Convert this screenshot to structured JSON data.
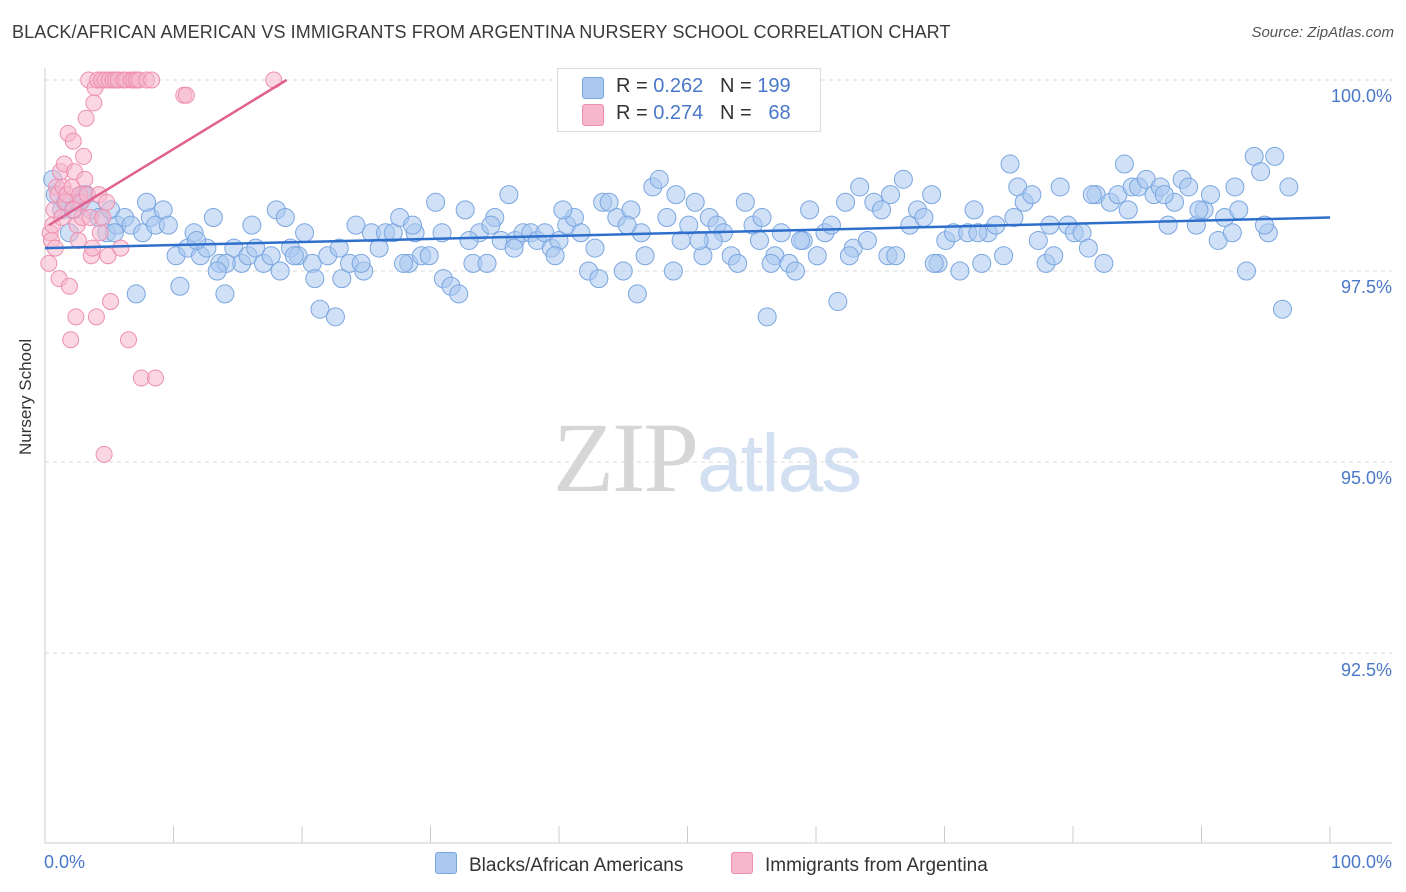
{
  "title": "BLACK/AFRICAN AMERICAN VS IMMIGRANTS FROM ARGENTINA NURSERY SCHOOL CORRELATION CHART",
  "source": "Source: ZipAtlas.com",
  "watermark": {
    "part1": "ZIP",
    "part2": "atlas"
  },
  "legend": {
    "r_label": "R =",
    "n_label": "N =",
    "rows": [
      {
        "r": "0.262",
        "n": "199"
      },
      {
        "r": "0.274",
        "n": "68"
      }
    ]
  },
  "bottom_legend": [
    "Blacks/African Americans",
    "Immigrants from Argentina"
  ],
  "colors": {
    "blue_fill": "#aac8f0",
    "blue_stroke": "#7aa6e0",
    "blue_line": "#2f6fcc",
    "pink_fill": "#f6b6cc",
    "pink_stroke": "#ee8fb0",
    "pink_line": "#e0608f",
    "tick_text": "#4a78c8",
    "grid": "#d9d9d9"
  },
  "chart_data": {
    "type": "scatter",
    "title": "BLACK/AFRICAN AMERICAN VS IMMIGRANTS FROM ARGENTINA NURSERY SCHOOL CORRELATION CHART",
    "xlabel": "",
    "ylabel": "Nursery School",
    "xlim": [
      0,
      100
    ],
    "ylim": [
      90.0,
      100.2
    ],
    "x_tick_labels": [
      "0.0%",
      "100.0%"
    ],
    "y_ticks": [
      92.5,
      95.0,
      97.5,
      100.0
    ],
    "y_tick_labels": [
      "92.5%",
      "95.0%",
      "97.5%",
      "100.0%"
    ],
    "grid": "horizontal dashed",
    "series": [
      {
        "name": "Blacks/African Americans",
        "R": 0.262,
        "N": 199,
        "trend": {
          "x": [
            0,
            100
          ],
          "y": [
            97.8,
            98.2
          ]
        },
        "points": [
          [
            0.6,
            98.7
          ],
          [
            0.8,
            98.5
          ],
          [
            1.3,
            98.3
          ],
          [
            1.6,
            98.4
          ],
          [
            2.2,
            98.3
          ],
          [
            2.6,
            98.4
          ],
          [
            3.2,
            98.5
          ],
          [
            3.6,
            98.3
          ],
          [
            4.2,
            98.2
          ],
          [
            4.8,
            98.0
          ],
          [
            5.1,
            98.3
          ],
          [
            5.6,
            98.1
          ],
          [
            6.2,
            98.2
          ],
          [
            6.7,
            98.1
          ],
          [
            7.1,
            97.2
          ],
          [
            7.6,
            98.0
          ],
          [
            8.2,
            98.2
          ],
          [
            8.6,
            98.1
          ],
          [
            9.2,
            98.3
          ],
          [
            9.6,
            98.1
          ],
          [
            10.2,
            97.7
          ],
          [
            10.5,
            97.3
          ],
          [
            11.1,
            97.8
          ],
          [
            11.6,
            98.0
          ],
          [
            12.1,
            97.7
          ],
          [
            12.6,
            97.8
          ],
          [
            13.1,
            98.2
          ],
          [
            13.6,
            97.6
          ],
          [
            14.0,
            97.2
          ],
          [
            14.7,
            97.8
          ],
          [
            15.3,
            97.6
          ],
          [
            15.8,
            97.7
          ],
          [
            16.4,
            97.8
          ],
          [
            17.0,
            97.6
          ],
          [
            17.6,
            97.7
          ],
          [
            18.0,
            98.3
          ],
          [
            18.7,
            98.2
          ],
          [
            19.1,
            97.8
          ],
          [
            19.7,
            97.7
          ],
          [
            20.2,
            98.0
          ],
          [
            20.8,
            97.6
          ],
          [
            21.4,
            97.0
          ],
          [
            22.0,
            97.7
          ],
          [
            22.6,
            96.9
          ],
          [
            23.1,
            97.4
          ],
          [
            23.7,
            97.6
          ],
          [
            24.2,
            98.1
          ],
          [
            24.8,
            97.5
          ],
          [
            25.4,
            98.0
          ],
          [
            26.0,
            97.8
          ],
          [
            26.5,
            98.0
          ],
          [
            27.1,
            98.0
          ],
          [
            27.6,
            98.2
          ],
          [
            28.3,
            97.6
          ],
          [
            28.8,
            98.0
          ],
          [
            29.3,
            97.7
          ],
          [
            29.9,
            97.7
          ],
          [
            30.4,
            98.4
          ],
          [
            31.0,
            97.4
          ],
          [
            31.6,
            97.3
          ],
          [
            32.2,
            97.2
          ],
          [
            32.7,
            98.3
          ],
          [
            33.3,
            97.6
          ],
          [
            33.8,
            98.0
          ],
          [
            34.4,
            97.6
          ],
          [
            35.0,
            98.2
          ],
          [
            35.5,
            97.9
          ],
          [
            36.1,
            98.5
          ],
          [
            36.6,
            97.9
          ],
          [
            37.2,
            98.0
          ],
          [
            37.8,
            98.0
          ],
          [
            38.3,
            97.9
          ],
          [
            38.9,
            98.0
          ],
          [
            39.4,
            97.8
          ],
          [
            40.0,
            97.9
          ],
          [
            40.6,
            98.1
          ],
          [
            41.2,
            98.2
          ],
          [
            41.7,
            98.0
          ],
          [
            42.3,
            97.5
          ],
          [
            42.8,
            97.8
          ],
          [
            43.4,
            98.4
          ],
          [
            43.9,
            98.4
          ],
          [
            44.5,
            98.2
          ],
          [
            45.0,
            97.5
          ],
          [
            45.6,
            98.3
          ],
          [
            46.1,
            97.2
          ],
          [
            46.7,
            97.7
          ],
          [
            47.3,
            98.6
          ],
          [
            47.8,
            98.7
          ],
          [
            48.4,
            98.2
          ],
          [
            48.9,
            97.5
          ],
          [
            49.5,
            97.9
          ],
          [
            50.1,
            98.1
          ],
          [
            50.6,
            98.4
          ],
          [
            51.2,
            97.7
          ],
          [
            51.7,
            98.2
          ],
          [
            52.3,
            98.1
          ],
          [
            52.8,
            98.0
          ],
          [
            53.4,
            97.7
          ],
          [
            53.9,
            97.6
          ],
          [
            54.5,
            98.4
          ],
          [
            55.1,
            98.1
          ],
          [
            55.6,
            97.9
          ],
          [
            56.2,
            96.9
          ],
          [
            56.8,
            97.7
          ],
          [
            57.3,
            98.0
          ],
          [
            57.9,
            97.6
          ],
          [
            58.4,
            97.5
          ],
          [
            59.0,
            97.9
          ],
          [
            59.5,
            98.3
          ],
          [
            60.1,
            97.7
          ],
          [
            60.7,
            98.0
          ],
          [
            61.2,
            98.1
          ],
          [
            61.7,
            97.1
          ],
          [
            62.3,
            98.4
          ],
          [
            62.9,
            97.8
          ],
          [
            63.4,
            98.6
          ],
          [
            64.0,
            97.9
          ],
          [
            64.5,
            98.4
          ],
          [
            65.1,
            98.3
          ],
          [
            65.6,
            97.7
          ],
          [
            66.2,
            97.7
          ],
          [
            66.8,
            98.7
          ],
          [
            67.3,
            98.1
          ],
          [
            67.9,
            98.3
          ],
          [
            68.4,
            98.2
          ],
          [
            69.0,
            98.5
          ],
          [
            69.5,
            97.6
          ],
          [
            70.1,
            97.9
          ],
          [
            70.7,
            98.0
          ],
          [
            71.2,
            97.5
          ],
          [
            71.8,
            98.0
          ],
          [
            72.3,
            98.3
          ],
          [
            72.9,
            97.6
          ],
          [
            73.4,
            98.0
          ],
          [
            74.0,
            98.1
          ],
          [
            74.6,
            97.7
          ],
          [
            75.1,
            98.9
          ],
          [
            75.7,
            98.6
          ],
          [
            76.2,
            98.4
          ],
          [
            76.8,
            98.5
          ],
          [
            77.3,
            97.9
          ],
          [
            77.9,
            97.6
          ],
          [
            78.5,
            97.7
          ],
          [
            79.0,
            98.6
          ],
          [
            79.6,
            98.1
          ],
          [
            80.1,
            98.0
          ],
          [
            80.7,
            98.0
          ],
          [
            81.2,
            97.8
          ],
          [
            81.8,
            98.5
          ],
          [
            82.4,
            97.6
          ],
          [
            82.9,
            98.4
          ],
          [
            83.5,
            98.5
          ],
          [
            84.0,
            98.9
          ],
          [
            84.6,
            98.6
          ],
          [
            85.1,
            98.6
          ],
          [
            85.7,
            98.7
          ],
          [
            86.3,
            98.5
          ],
          [
            86.8,
            98.6
          ],
          [
            87.4,
            98.1
          ],
          [
            87.9,
            98.4
          ],
          [
            88.5,
            98.7
          ],
          [
            89.0,
            98.6
          ],
          [
            89.6,
            98.1
          ],
          [
            90.2,
            98.3
          ],
          [
            90.7,
            98.5
          ],
          [
            91.3,
            97.9
          ],
          [
            91.8,
            98.2
          ],
          [
            92.4,
            98.0
          ],
          [
            92.9,
            98.3
          ],
          [
            93.5,
            97.5
          ],
          [
            94.1,
            99.0
          ],
          [
            94.6,
            98.8
          ],
          [
            95.2,
            98.0
          ],
          [
            95.7,
            99.0
          ],
          [
            96.3,
            97.0
          ],
          [
            96.8,
            98.6
          ],
          [
            3.0,
            98.5
          ],
          [
            5.4,
            98.0
          ],
          [
            11.8,
            97.9
          ],
          [
            14.1,
            97.6
          ],
          [
            16.1,
            98.1
          ],
          [
            19.4,
            97.7
          ],
          [
            21.0,
            97.4
          ],
          [
            24.6,
            97.6
          ],
          [
            27.9,
            97.6
          ],
          [
            30.9,
            98.0
          ],
          [
            33.0,
            97.9
          ],
          [
            36.5,
            97.8
          ],
          [
            39.7,
            97.7
          ],
          [
            43.1,
            97.4
          ],
          [
            46.4,
            98.0
          ],
          [
            49.1,
            98.5
          ],
          [
            52.0,
            97.9
          ],
          [
            55.8,
            98.2
          ],
          [
            58.8,
            97.9
          ],
          [
            62.6,
            97.7
          ],
          [
            65.8,
            98.5
          ],
          [
            69.2,
            97.6
          ],
          [
            72.6,
            98.0
          ],
          [
            75.4,
            98.2
          ],
          [
            78.2,
            98.1
          ],
          [
            81.5,
            98.5
          ],
          [
            84.3,
            98.3
          ],
          [
            87.1,
            98.5
          ],
          [
            89.8,
            98.3
          ],
          [
            92.6,
            98.6
          ],
          [
            94.9,
            98.1
          ],
          [
            1.9,
            98.0
          ],
          [
            7.9,
            98.4
          ],
          [
            13.4,
            97.5
          ],
          [
            18.3,
            97.5
          ],
          [
            22.9,
            97.8
          ],
          [
            28.6,
            98.1
          ],
          [
            34.7,
            98.1
          ],
          [
            40.3,
            98.3
          ],
          [
            45.3,
            98.1
          ],
          [
            50.9,
            97.9
          ],
          [
            56.5,
            97.6
          ]
        ]
      },
      {
        "name": "Immigrants from Argentina",
        "R": 0.274,
        "N": 68,
        "trend": {
          "x": [
            0.3,
            18.8
          ],
          "y": [
            98.1,
            100.0
          ]
        },
        "points": [
          [
            0.3,
            97.6
          ],
          [
            0.4,
            98.0
          ],
          [
            0.5,
            97.9
          ],
          [
            0.6,
            98.1
          ],
          [
            0.7,
            98.3
          ],
          [
            0.8,
            97.8
          ],
          [
            0.9,
            98.6
          ],
          [
            1.0,
            98.5
          ],
          [
            1.1,
            97.4
          ],
          [
            1.2,
            98.8
          ],
          [
            1.3,
            98.2
          ],
          [
            1.4,
            98.6
          ],
          [
            1.5,
            98.9
          ],
          [
            1.6,
            98.4
          ],
          [
            1.7,
            98.5
          ],
          [
            1.8,
            99.3
          ],
          [
            1.9,
            97.3
          ],
          [
            2.0,
            96.6
          ],
          [
            2.1,
            98.6
          ],
          [
            2.2,
            99.2
          ],
          [
            2.3,
            98.8
          ],
          [
            2.4,
            96.9
          ],
          [
            2.5,
            98.1
          ],
          [
            2.6,
            97.9
          ],
          [
            2.7,
            98.5
          ],
          [
            2.8,
            98.4
          ],
          [
            2.9,
            98.2
          ],
          [
            3.0,
            99.0
          ],
          [
            3.1,
            98.7
          ],
          [
            3.2,
            99.5
          ],
          [
            3.3,
            98.5
          ],
          [
            3.4,
            100.0
          ],
          [
            3.5,
            98.2
          ],
          [
            3.6,
            97.7
          ],
          [
            3.7,
            97.8
          ],
          [
            3.8,
            99.7
          ],
          [
            3.9,
            99.9
          ],
          [
            4.0,
            96.9
          ],
          [
            4.1,
            100.0
          ],
          [
            4.2,
            98.5
          ],
          [
            4.3,
            98.0
          ],
          [
            4.4,
            100.0
          ],
          [
            4.5,
            98.2
          ],
          [
            4.6,
            95.1
          ],
          [
            4.7,
            100.0
          ],
          [
            4.8,
            98.4
          ],
          [
            4.9,
            97.7
          ],
          [
            5.0,
            100.0
          ],
          [
            5.1,
            97.1
          ],
          [
            5.3,
            100.0
          ],
          [
            5.5,
            100.0
          ],
          [
            5.7,
            100.0
          ],
          [
            5.9,
            97.8
          ],
          [
            6.1,
            100.0
          ],
          [
            6.3,
            100.0
          ],
          [
            6.5,
            96.6
          ],
          [
            6.7,
            100.0
          ],
          [
            6.9,
            100.0
          ],
          [
            7.1,
            100.0
          ],
          [
            7.3,
            100.0
          ],
          [
            7.5,
            96.1
          ],
          [
            7.9,
            100.0
          ],
          [
            8.3,
            100.0
          ],
          [
            8.6,
            96.1
          ],
          [
            10.8,
            99.8
          ],
          [
            11.0,
            99.8
          ],
          [
            17.8,
            100.0
          ],
          [
            2.2,
            98.3
          ]
        ]
      }
    ]
  }
}
